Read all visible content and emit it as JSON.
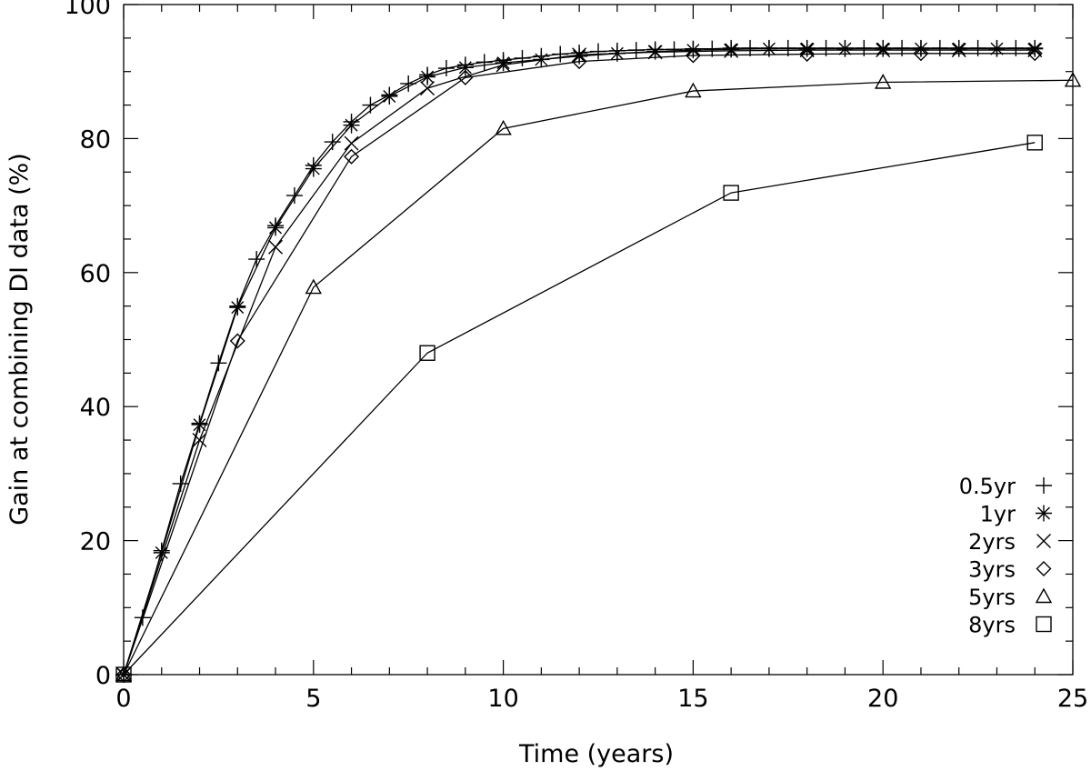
{
  "chart_data": {
    "type": "line",
    "title": "",
    "xlabel": "Time (years)",
    "ylabel": "Gain at combining DI data (%)",
    "xlim": [
      0,
      25
    ],
    "ylim": [
      0,
      100
    ],
    "xticks": [
      0,
      5,
      10,
      15,
      20,
      25
    ],
    "yticks": [
      0,
      20,
      40,
      60,
      80,
      100
    ],
    "xtick_labels": [
      "0",
      "5",
      "10",
      "15",
      "20",
      "25"
    ],
    "ytick_labels": [
      "0",
      "20",
      "40",
      "60",
      "80",
      "100"
    ],
    "x_minor_step": 1,
    "y_minor_step": 5,
    "legend_position": "bottom-right",
    "series": [
      {
        "name": "0.5yr",
        "marker": "plus",
        "x": [
          0,
          0.5,
          1,
          1.5,
          2,
          2.5,
          3,
          3.5,
          4,
          4.5,
          5,
          5.5,
          6,
          6.5,
          7,
          7.5,
          8,
          8.5,
          9,
          9.5,
          10,
          10.5,
          11,
          11.5,
          12,
          12.5,
          13,
          13.5,
          14,
          14.5,
          15,
          15.5,
          16,
          16.5,
          17,
          17.5,
          18,
          18.5,
          19,
          19.5,
          20,
          20.5,
          21,
          21.5,
          22,
          22.5,
          23,
          23.5,
          24
        ],
        "y": [
          0,
          8.5,
          18.5,
          28.5,
          37.5,
          46.5,
          55,
          62,
          67,
          71.5,
          76,
          79.5,
          82.5,
          85,
          86.5,
          88.2,
          89.5,
          90.5,
          91,
          91.4,
          91.7,
          92,
          92.3,
          92.6,
          92.8,
          93,
          93.1,
          93.2,
          93.3,
          93.3,
          93.4,
          93.4,
          93.5,
          93.5,
          93.5,
          93.5,
          93.5,
          93.5,
          93.5,
          93.5,
          93.5,
          93.5,
          93.5,
          93.5,
          93.5,
          93.5,
          93.5,
          93.5,
          93.5
        ]
      },
      {
        "name": "1yr",
        "marker": "asterisk",
        "x": [
          0,
          1,
          2,
          3,
          4,
          5,
          6,
          7,
          8,
          9,
          10,
          11,
          12,
          13,
          14,
          15,
          16,
          17,
          18,
          19,
          20,
          21,
          22,
          23,
          24
        ],
        "y": [
          0,
          18.2,
          37.3,
          54.8,
          66.7,
          75.5,
          82,
          86.3,
          89.2,
          90.6,
          91.3,
          91.8,
          92.3,
          92.7,
          93,
          93.2,
          93.3,
          93.4,
          93.4,
          93.4,
          93.4,
          93.4,
          93.4,
          93.4,
          93.4
        ]
      },
      {
        "name": "2yrs",
        "marker": "cross",
        "x": [
          0,
          2,
          4,
          6,
          8,
          10,
          12,
          14,
          16,
          18,
          20,
          22,
          24
        ],
        "y": [
          0,
          35,
          63.8,
          79.3,
          87.5,
          91,
          92.5,
          92.9,
          93.1,
          93.2,
          93.2,
          93.2,
          93.2
        ]
      },
      {
        "name": "3yrs",
        "marker": "diamond",
        "x": [
          0,
          3,
          6,
          9,
          12,
          15,
          18,
          21,
          24
        ],
        "y": [
          0,
          49.8,
          77.3,
          89.1,
          91.5,
          92.4,
          92.6,
          92.7,
          92.7
        ]
      },
      {
        "name": "5yrs",
        "marker": "triangle",
        "x": [
          0,
          5,
          10,
          15,
          20,
          25
        ],
        "y": [
          0,
          57.8,
          81.5,
          87.1,
          88.4,
          88.7
        ]
      },
      {
        "name": "8yrs",
        "marker": "square",
        "x": [
          0,
          8,
          16,
          24
        ],
        "y": [
          0,
          48,
          71.9,
          79.4
        ]
      }
    ]
  }
}
